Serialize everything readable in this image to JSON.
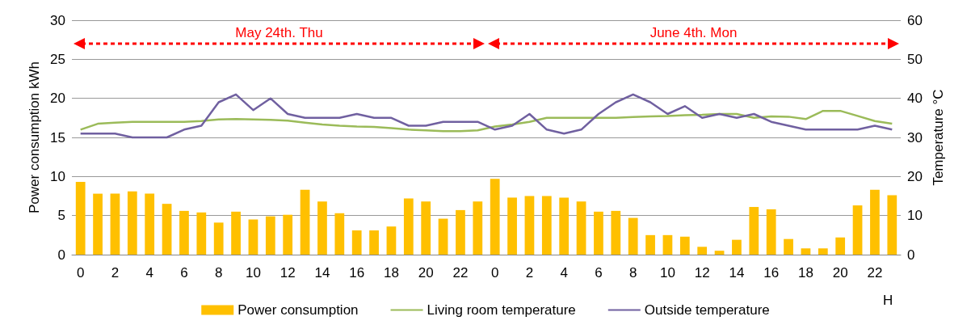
{
  "chart_data": {
    "type": "bar",
    "categories": [
      "0",
      null,
      "2",
      null,
      "4",
      null,
      "6",
      null,
      "8",
      null,
      "10",
      null,
      "12",
      null,
      "14",
      null,
      "16",
      null,
      "18",
      null,
      "20",
      null,
      "22",
      null,
      "0",
      null,
      "2",
      null,
      "4",
      null,
      "6",
      null,
      "8",
      null,
      "10",
      null,
      "12",
      null,
      "14",
      null,
      "16",
      null,
      "18",
      null,
      "20",
      null,
      "22",
      null
    ],
    "series": [
      {
        "name": "Power consumption",
        "color": "#ffc000",
        "values": [
          9.3,
          7.8,
          7.8,
          8.1,
          7.8,
          6.5,
          5.6,
          5.4,
          4.1,
          5.5,
          4.5,
          4.9,
          5.1,
          8.3,
          6.8,
          5.3,
          3.1,
          3.1,
          3.6,
          7.2,
          6.8,
          4.6,
          5.7,
          6.8,
          9.7,
          7.3,
          7.5,
          7.5,
          7.3,
          6.8,
          5.5,
          5.6,
          4.7,
          2.5,
          2.5,
          2.3,
          1.0,
          0.5,
          1.9,
          6.1,
          5.8,
          2.0,
          0.8,
          0.8,
          2.2,
          6.3,
          8.3,
          7.6
        ]
      },
      {
        "name": "Living room temperature",
        "type": "line",
        "axis": "y2",
        "color": "#9bbb59",
        "values": [
          32,
          33.5,
          33.8,
          34,
          34,
          34,
          34,
          34.2,
          34.6,
          34.7,
          34.6,
          34.5,
          34.3,
          33.8,
          33.3,
          33,
          32.8,
          32.7,
          32.4,
          32,
          31.8,
          31.6,
          31.6,
          31.8,
          32.8,
          33.3,
          34,
          35,
          35,
          35,
          35,
          35,
          35.2,
          35.4,
          35.5,
          35.7,
          35.8,
          36,
          36,
          35,
          35.4,
          35.3,
          34.7,
          36.8,
          36.8,
          35.5,
          34.2,
          33.5
        ]
      },
      {
        "name": "Outside temperature",
        "type": "line",
        "axis": "y2",
        "color": "#7060a0",
        "values": [
          31,
          31,
          31,
          30,
          30,
          30,
          32,
          33,
          39,
          41,
          37,
          40,
          36,
          35,
          35,
          35,
          36,
          35,
          35,
          33,
          33,
          34,
          34,
          34,
          32,
          33,
          36,
          32,
          31,
          32,
          36,
          39,
          41,
          39,
          36,
          38,
          35,
          36,
          35,
          36,
          34,
          33,
          32,
          32,
          32,
          32,
          33,
          32
        ]
      }
    ],
    "xlabel": "H",
    "ylabel": "Power consumption kWh",
    "y2label": "Temperature °C",
    "ylim": [
      0,
      30
    ],
    "yticks": [
      0,
      5,
      10,
      15,
      20,
      25,
      30
    ],
    "y2lim": [
      0,
      60
    ],
    "y2ticks": [
      0,
      10,
      20,
      30,
      40,
      50,
      60
    ],
    "annotations": [
      "May 24th. Thu",
      "June 4th. Mon"
    ],
    "grid": "y",
    "legend": "bottom",
    "marker": "none",
    "line_style": "solid"
  }
}
